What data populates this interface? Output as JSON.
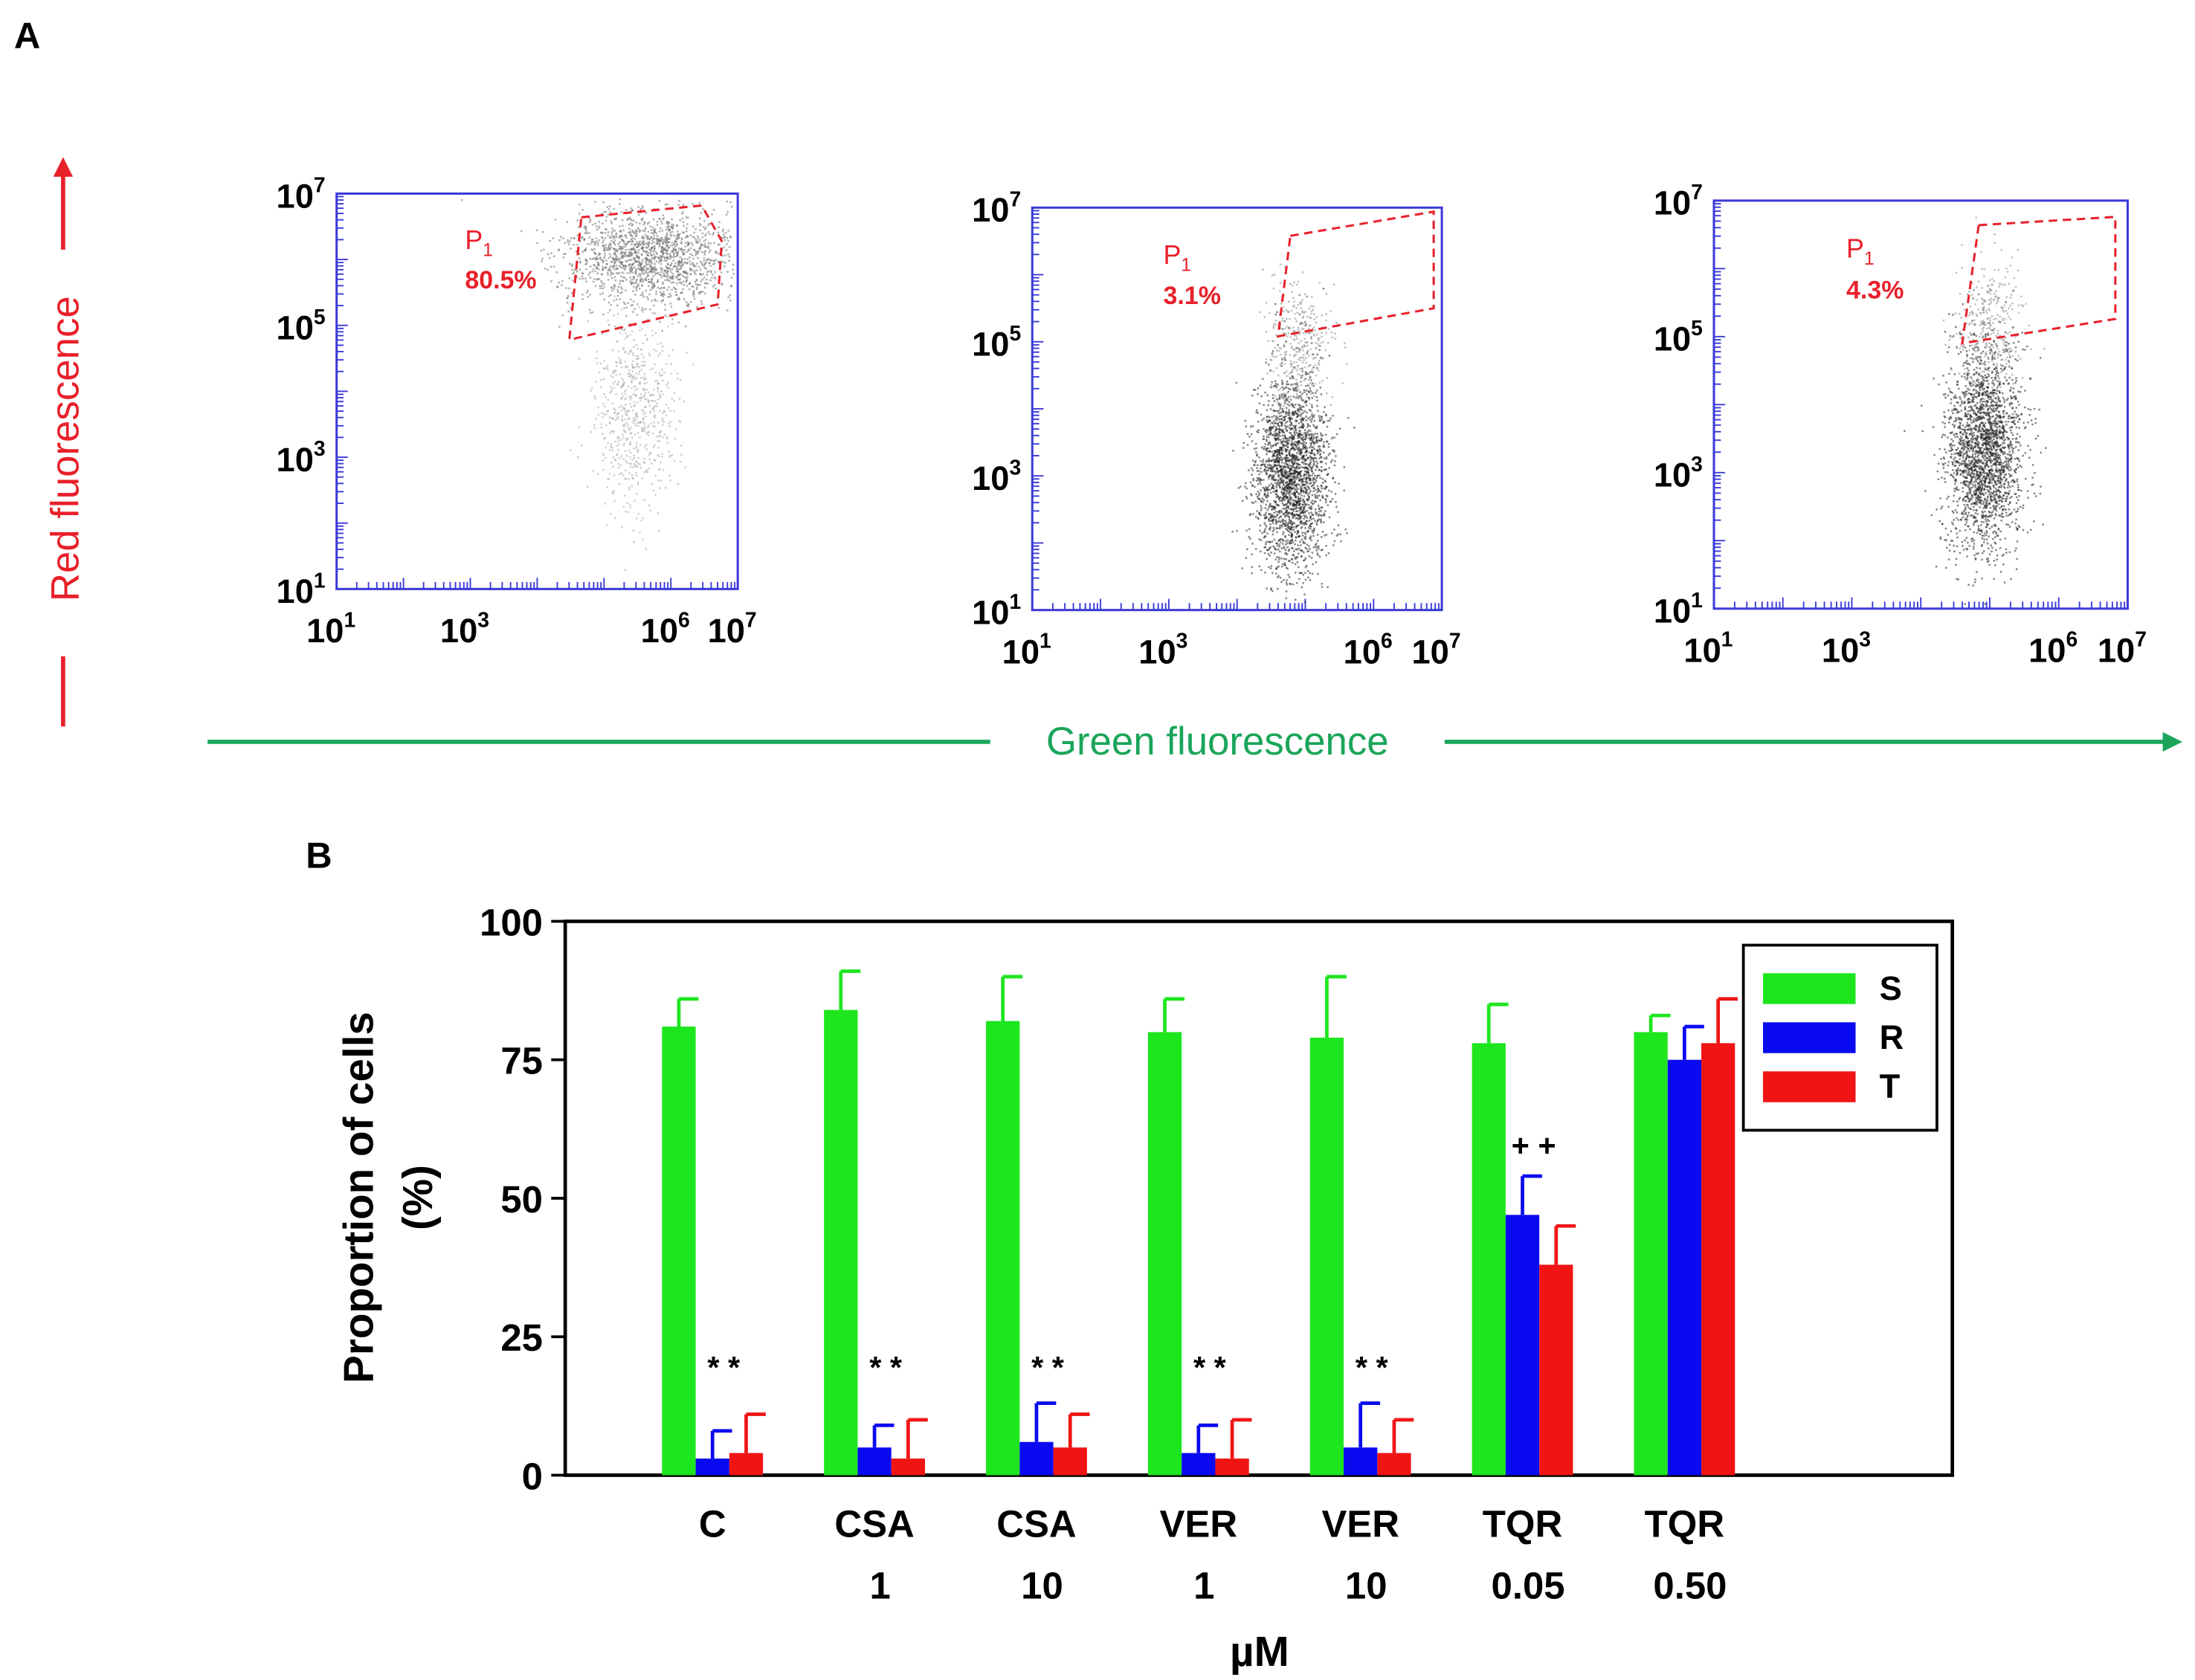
{
  "panel_a": {
    "label": "A",
    "y_axis_title": "Red fluorescence",
    "x_axis_title": "Green fluorescence",
    "red_color": "#e8202a",
    "green_color": "#1aa55a",
    "plots": [
      {
        "gate_name": "P",
        "gate_sub": "1",
        "gate_percent": "80.5%"
      },
      {
        "gate_name": "P",
        "gate_sub": "1",
        "gate_percent": "3.1%"
      },
      {
        "gate_name": "P",
        "gate_sub": "1",
        "gate_percent": "4.3%"
      }
    ],
    "y_ticks": [
      {
        "base": "10",
        "exp": "1",
        "value": 1
      },
      {
        "base": "10",
        "exp": "3",
        "value": 3
      },
      {
        "base": "10",
        "exp": "5",
        "value": 5
      },
      {
        "base": "10",
        "exp": "7",
        "value": 7
      }
    ],
    "x_ticks": [
      {
        "base": "10",
        "exp": "1",
        "value": 1
      },
      {
        "base": "10",
        "exp": "3",
        "value": 3
      },
      {
        "base": "10",
        "exp": "6",
        "value": 6
      },
      {
        "base": "10",
        "exp": "7",
        "value": 7
      }
    ]
  },
  "chart_data": {
    "type": "bar",
    "panel_label": "B",
    "ylabel_line1": "Proportion of cells",
    "ylabel_line2": "(%)",
    "xlabel": "µM",
    "ylim": [
      0,
      100
    ],
    "yticks": [
      0,
      25,
      50,
      75,
      100
    ],
    "categories": [
      {
        "line1": "C",
        "line2": ""
      },
      {
        "line1": "CSA",
        "line2": "1"
      },
      {
        "line1": "CSA",
        "line2": "10"
      },
      {
        "line1": "VER",
        "line2": "1"
      },
      {
        "line1": "VER",
        "line2": "10"
      },
      {
        "line1": "TQR",
        "line2": "0.05"
      },
      {
        "line1": "TQR",
        "line2": "0.50"
      }
    ],
    "series": [
      {
        "name": "S",
        "color": "#1ee61e",
        "values": [
          81,
          84,
          82,
          80,
          79,
          78,
          80
        ],
        "errors": [
          5,
          7,
          8,
          6,
          11,
          7,
          3
        ]
      },
      {
        "name": "R",
        "color": "#0a0af0",
        "values": [
          3,
          5,
          6,
          4,
          5,
          47,
          75
        ],
        "errors": [
          5,
          4,
          7,
          5,
          8,
          7,
          6
        ]
      },
      {
        "name": "T",
        "color": "#f01414",
        "values": [
          4,
          3,
          5,
          3,
          4,
          38,
          78
        ],
        "errors": [
          7,
          7,
          6,
          7,
          6,
          7,
          8
        ]
      }
    ],
    "annotations": [
      "* *",
      "* *",
      "* *",
      "* *",
      "* *",
      "+ +",
      ""
    ],
    "legend_position": "top-right"
  }
}
